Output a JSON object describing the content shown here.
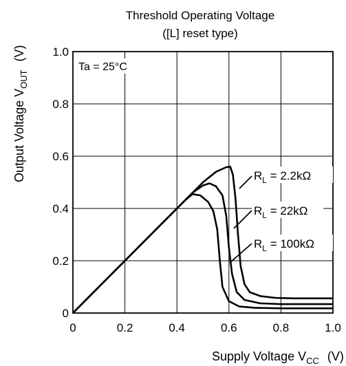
{
  "chart_data": {
    "type": "line",
    "title_line1": "Threshold Operating Voltage",
    "title_line2": "([L] reset type)",
    "annotation": "Ta = 25°C",
    "xlabel": {
      "main": "Supply Voltage  V",
      "sub": "CC",
      "unit": "(V)"
    },
    "ylabel": {
      "main": "Output Voltage  V",
      "sub": "OUT",
      "unit": "(V)"
    },
    "xlim": [
      0,
      1.0
    ],
    "ylim": [
      0,
      1.0
    ],
    "x_ticks": [
      "0",
      "0.2",
      "0.4",
      "0.6",
      "0.8",
      "1.0"
    ],
    "y_ticks": [
      "0",
      "0.2",
      "0.4",
      "0.6",
      "0.8",
      "1.0"
    ],
    "grid": true,
    "series": [
      {
        "name": "R_L = 2.2kΩ",
        "label_prefix": "R",
        "label_sub": "L",
        "label_value": " = 2.2kΩ",
        "points": [
          [
            0,
            0
          ],
          [
            0.1,
            0.1
          ],
          [
            0.2,
            0.2
          ],
          [
            0.3,
            0.3
          ],
          [
            0.4,
            0.4
          ],
          [
            0.5,
            0.5
          ],
          [
            0.55,
            0.54
          ],
          [
            0.59,
            0.558
          ],
          [
            0.605,
            0.56
          ],
          [
            0.615,
            0.53
          ],
          [
            0.625,
            0.44
          ],
          [
            0.635,
            0.3
          ],
          [
            0.645,
            0.18
          ],
          [
            0.66,
            0.11
          ],
          [
            0.68,
            0.08
          ],
          [
            0.72,
            0.065
          ],
          [
            0.78,
            0.058
          ],
          [
            0.85,
            0.056
          ],
          [
            1.0,
            0.056
          ]
        ]
      },
      {
        "name": "R_L = 22kΩ",
        "label_prefix": "R",
        "label_sub": "L",
        "label_value": " = 22kΩ",
        "points": [
          [
            0,
            0
          ],
          [
            0.1,
            0.1
          ],
          [
            0.2,
            0.2
          ],
          [
            0.3,
            0.3
          ],
          [
            0.4,
            0.4
          ],
          [
            0.46,
            0.46
          ],
          [
            0.5,
            0.488
          ],
          [
            0.525,
            0.496
          ],
          [
            0.55,
            0.485
          ],
          [
            0.575,
            0.45
          ],
          [
            0.59,
            0.37
          ],
          [
            0.6,
            0.25
          ],
          [
            0.612,
            0.15
          ],
          [
            0.63,
            0.08
          ],
          [
            0.66,
            0.05
          ],
          [
            0.72,
            0.037
          ],
          [
            0.8,
            0.034
          ],
          [
            1.0,
            0.034
          ]
        ]
      },
      {
        "name": "R_L = 100kΩ",
        "label_prefix": "R",
        "label_sub": "L",
        "label_value": " = 100kΩ",
        "points": [
          [
            0,
            0
          ],
          [
            0.1,
            0.1
          ],
          [
            0.2,
            0.2
          ],
          [
            0.3,
            0.3
          ],
          [
            0.4,
            0.4
          ],
          [
            0.43,
            0.43
          ],
          [
            0.46,
            0.455
          ],
          [
            0.49,
            0.45
          ],
          [
            0.52,
            0.425
          ],
          [
            0.54,
            0.39
          ],
          [
            0.555,
            0.32
          ],
          [
            0.565,
            0.2
          ],
          [
            0.575,
            0.1
          ],
          [
            0.6,
            0.045
          ],
          [
            0.64,
            0.025
          ],
          [
            0.7,
            0.02
          ],
          [
            0.8,
            0.018
          ],
          [
            1.0,
            0.018
          ]
        ]
      }
    ]
  }
}
